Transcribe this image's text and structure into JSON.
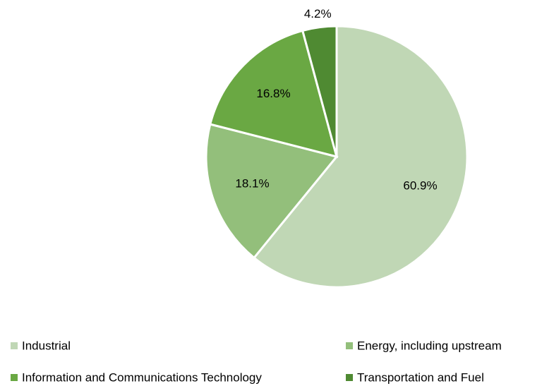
{
  "chart_data": {
    "type": "pie",
    "categories": [
      "Industrial",
      "Energy, including upstream",
      "Information and Communications Technology",
      "Transportation and Fuel"
    ],
    "values": [
      60.9,
      18.1,
      16.8,
      4.2
    ],
    "value_labels": [
      "60.9%",
      "18.1%",
      "16.8%",
      "4.2%"
    ],
    "colors": [
      "#c0d7b5",
      "#93bf7b",
      "#6aa843",
      "#4f8a32"
    ],
    "legend": "bottom"
  }
}
